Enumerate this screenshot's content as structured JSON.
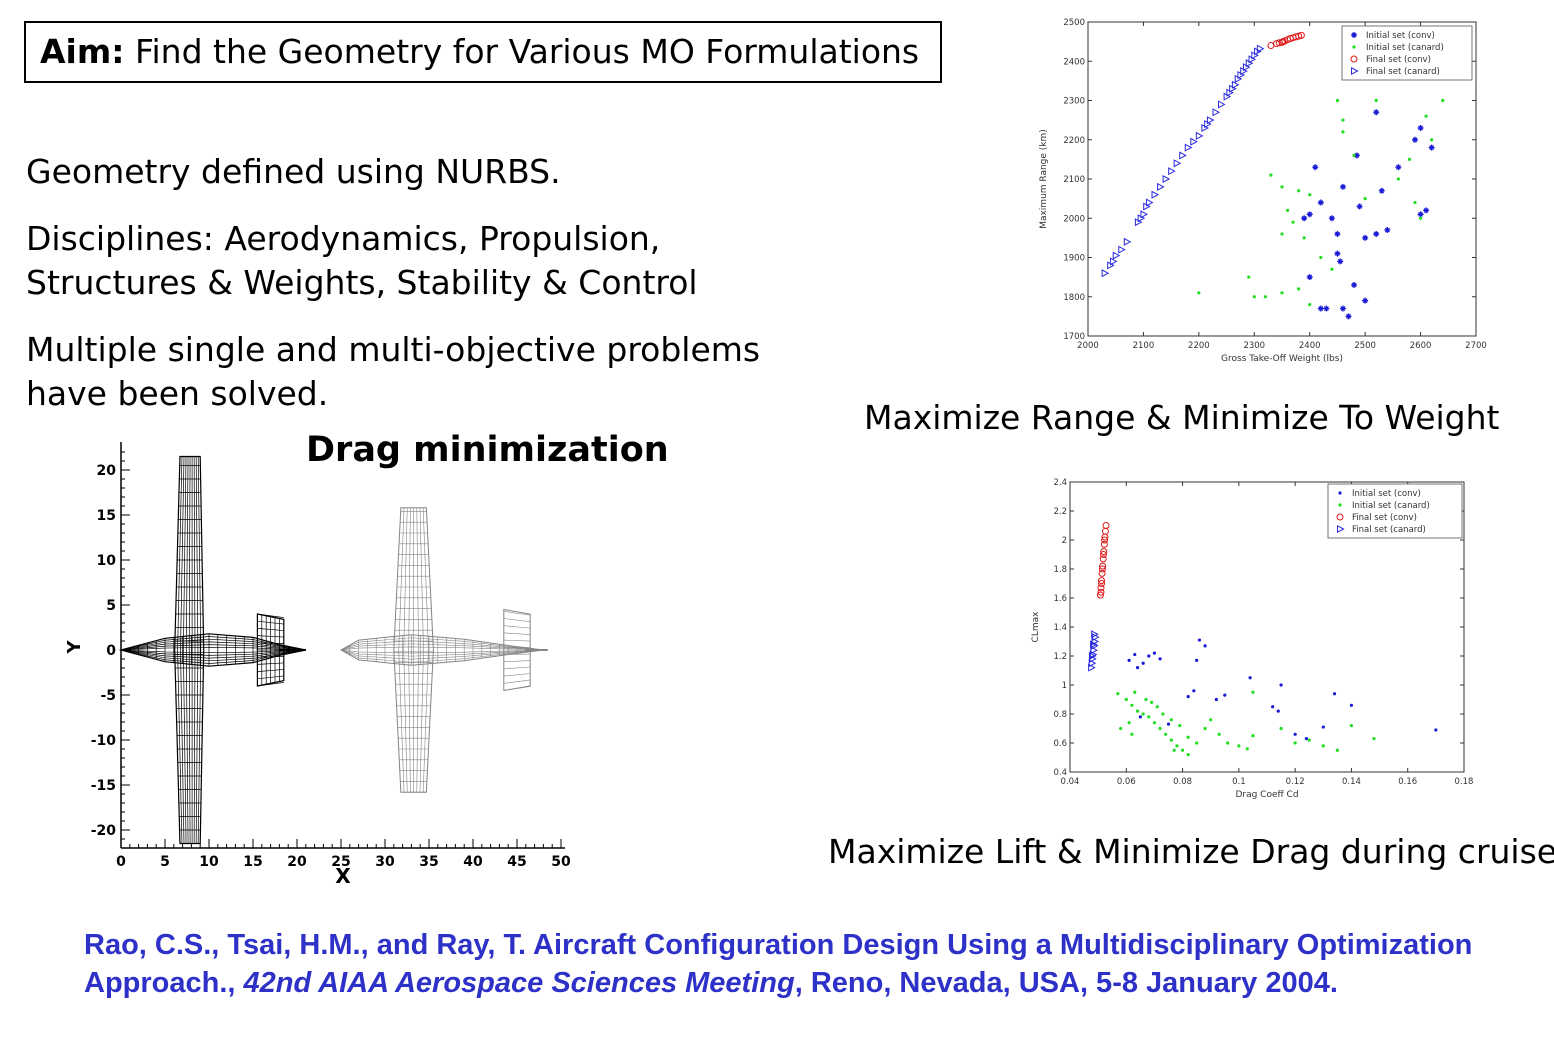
{
  "aim": {
    "label": "Aim:",
    "text": "Find the Geometry  for Various MO Formulations"
  },
  "bullets": {
    "nurbs": "Geometry defined using NURBS.",
    "disciplines_1": "Disciplines: Aerodynamics, Propulsion,",
    "disciplines_2": "Structures & Weights, Stability & Control",
    "multi_1": "Multiple single and multi-objective problems",
    "multi_2": "have been solved."
  },
  "drag_title": "Drag minimization",
  "caption_range": "Maximize Range & Minimize To Weight",
  "caption_lift": "Maximize Lift & Minimize Drag during cruise",
  "reference": {
    "part1": "Rao, C.S., Tsai, H.M., and Ray,  T. Aircraft Configuration Design Using a Multidisciplinary Optimization Approach., ",
    "journal": "42nd AIAA Aerospace Sciences Meeting",
    "part2": ", Reno, Nevada, USA, 5-8 January 2004."
  },
  "colors": {
    "conv_initial": "#1a1ad6",
    "canard_initial": "#22dd22",
    "conv_final": "#e01818",
    "canard_final": "#2a2ae0",
    "reference": "#2e31c8"
  },
  "chart_data": [
    {
      "type": "scatter",
      "xlabel": "Gross Take-Off Weight (lbs)",
      "ylabel": "Maximum Range (km)",
      "xlim": [
        2000,
        2700
      ],
      "ylim": [
        1700,
        2500
      ],
      "xticks": [
        2000,
        2100,
        2200,
        2300,
        2400,
        2500,
        2600,
        2700
      ],
      "yticks": [
        1700,
        1800,
        1900,
        2000,
        2100,
        2200,
        2300,
        2400,
        2500
      ],
      "legend": "top-right",
      "series": [
        {
          "name": "Initial set (conv)",
          "marker": "star",
          "color": "#1a1ad6",
          "points": [
            [
              2485,
              2160
            ],
            [
              2410,
              2130
            ],
            [
              2460,
              2080
            ],
            [
              2520,
              2270
            ],
            [
              2600,
              2230
            ],
            [
              2620,
              2180
            ],
            [
              2590,
              2200
            ],
            [
              2560,
              2130
            ],
            [
              2530,
              2070
            ],
            [
              2490,
              2030
            ],
            [
              2440,
              2000
            ],
            [
              2420,
              2040
            ],
            [
              2400,
              2010
            ],
            [
              2450,
              1960
            ],
            [
              2390,
              2000
            ],
            [
              2610,
              2020
            ],
            [
              2600,
              2010
            ],
            [
              2540,
              1970
            ],
            [
              2520,
              1960
            ],
            [
              2500,
              1950
            ],
            [
              2450,
              1910
            ],
            [
              2455,
              1890
            ],
            [
              2400,
              1850
            ],
            [
              2480,
              1830
            ],
            [
              2430,
              1770
            ],
            [
              2460,
              1770
            ],
            [
              2500,
              1790
            ],
            [
              2470,
              1750
            ],
            [
              2420,
              1770
            ]
          ]
        },
        {
          "name": "Initial set (canard)",
          "marker": "dot",
          "color": "#22dd22",
          "points": [
            [
              2330,
              2110
            ],
            [
              2350,
              2080
            ],
            [
              2380,
              2070
            ],
            [
              2360,
              2020
            ],
            [
              2400,
              2060
            ],
            [
              2370,
              1990
            ],
            [
              2350,
              1960
            ],
            [
              2390,
              1950
            ],
            [
              2420,
              1900
            ],
            [
              2440,
              1870
            ],
            [
              2380,
              1820
            ],
            [
              2350,
              1810
            ],
            [
              2320,
              1800
            ],
            [
              2290,
              1850
            ],
            [
              2200,
              1810
            ],
            [
              2300,
              1800
            ],
            [
              2400,
              1780
            ],
            [
              2460,
              2250
            ],
            [
              2520,
              2300
            ],
            [
              2560,
              2100
            ],
            [
              2580,
              2150
            ],
            [
              2620,
              2200
            ],
            [
              2610,
              2260
            ],
            [
              2640,
              2300
            ],
            [
              2600,
              2000
            ],
            [
              2590,
              2040
            ],
            [
              2460,
              2220
            ],
            [
              2480,
              2160
            ],
            [
              2500,
              2050
            ],
            [
              2450,
              2300
            ]
          ]
        },
        {
          "name": "Final set (conv)",
          "marker": "circle",
          "color": "#e01818",
          "points": [
            [
              2330,
              2440
            ],
            [
              2340,
              2445
            ],
            [
              2350,
              2448
            ],
            [
              2355,
              2452
            ],
            [
              2360,
              2455
            ],
            [
              2365,
              2458
            ],
            [
              2370,
              2460
            ],
            [
              2375,
              2462
            ],
            [
              2380,
              2464
            ],
            [
              2385,
              2466
            ],
            [
              2345,
              2447
            ],
            [
              2352,
              2450
            ]
          ]
        },
        {
          "name": "Final set (canard)",
          "marker": "triangle",
          "color": "#2a2ae0",
          "points": [
            [
              2030,
              1860
            ],
            [
              2040,
              1880
            ],
            [
              2045,
              1890
            ],
            [
              2050,
              1905
            ],
            [
              2060,
              1920
            ],
            [
              2070,
              1940
            ],
            [
              2090,
              1990
            ],
            [
              2095,
              2000
            ],
            [
              2100,
              2010
            ],
            [
              2105,
              2030
            ],
            [
              2110,
              2040
            ],
            [
              2120,
              2060
            ],
            [
              2130,
              2080
            ],
            [
              2140,
              2100
            ],
            [
              2150,
              2120
            ],
            [
              2160,
              2140
            ],
            [
              2170,
              2160
            ],
            [
              2180,
              2180
            ],
            [
              2190,
              2195
            ],
            [
              2200,
              2210
            ],
            [
              2210,
              2230
            ],
            [
              2215,
              2240
            ],
            [
              2220,
              2250
            ],
            [
              2230,
              2270
            ],
            [
              2240,
              2290
            ],
            [
              2250,
              2310
            ],
            [
              2255,
              2320
            ],
            [
              2260,
              2330
            ],
            [
              2265,
              2340
            ],
            [
              2270,
              2355
            ],
            [
              2275,
              2365
            ],
            [
              2280,
              2375
            ],
            [
              2285,
              2385
            ],
            [
              2290,
              2395
            ],
            [
              2295,
              2405
            ],
            [
              2300,
              2415
            ],
            [
              2305,
              2425
            ],
            [
              2310,
              2432
            ]
          ]
        }
      ]
    },
    {
      "type": "scatter",
      "xlabel": "Drag Coeff Cd",
      "ylabel": "CLmax",
      "xlim": [
        0.04,
        0.18
      ],
      "ylim": [
        0.4,
        2.4
      ],
      "xticks": [
        0.04,
        0.06,
        0.08,
        0.1,
        0.12,
        0.14,
        0.16,
        0.18
      ],
      "xticklabels": [
        "0.04",
        "0.06",
        "0.08",
        "0.1",
        "0.12",
        "0.14",
        "0.16",
        "0.18"
      ],
      "yticks": [
        0.4,
        0.6,
        0.8,
        1.0,
        1.2,
        1.4,
        1.6,
        1.8,
        2.0,
        2.2,
        2.4
      ],
      "yticklabels": [
        "0.4",
        "0.6",
        "0.8",
        "1",
        "1.2",
        "1.4",
        "1.6",
        "1.8",
        "2",
        "2.2",
        "2.4"
      ],
      "legend": "top-right",
      "series": [
        {
          "name": "Initial set (conv)",
          "marker": "dot",
          "color": "#1a1ad6",
          "points": [
            [
              0.061,
              1.17
            ],
            [
              0.063,
              1.21
            ],
            [
              0.066,
              1.15
            ],
            [
              0.068,
              1.2
            ],
            [
              0.07,
              1.22
            ],
            [
              0.072,
              1.18
            ],
            [
              0.064,
              1.12
            ],
            [
              0.086,
              1.31
            ],
            [
              0.088,
              1.27
            ],
            [
              0.085,
              1.17
            ],
            [
              0.082,
              0.92
            ],
            [
              0.084,
              0.96
            ],
            [
              0.092,
              0.9
            ],
            [
              0.095,
              0.93
            ],
            [
              0.104,
              1.05
            ],
            [
              0.112,
              0.85
            ],
            [
              0.114,
              0.82
            ],
            [
              0.115,
              1.0
            ],
            [
              0.12,
              0.66
            ],
            [
              0.124,
              0.63
            ],
            [
              0.13,
              0.71
            ],
            [
              0.134,
              0.94
            ],
            [
              0.14,
              0.86
            ],
            [
              0.17,
              0.69
            ],
            [
              0.065,
              0.78
            ],
            [
              0.075,
              0.73
            ]
          ]
        },
        {
          "name": "Initial set (canard)",
          "marker": "dot",
          "color": "#22dd22",
          "points": [
            [
              0.057,
              0.94
            ],
            [
              0.06,
              0.9
            ],
            [
              0.062,
              0.86
            ],
            [
              0.064,
              0.82
            ],
            [
              0.066,
              0.8
            ],
            [
              0.068,
              0.78
            ],
            [
              0.07,
              0.74
            ],
            [
              0.072,
              0.7
            ],
            [
              0.074,
              0.66
            ],
            [
              0.076,
              0.62
            ],
            [
              0.078,
              0.58
            ],
            [
              0.08,
              0.55
            ],
            [
              0.082,
              0.52
            ],
            [
              0.085,
              0.6
            ],
            [
              0.088,
              0.7
            ],
            [
              0.09,
              0.76
            ],
            [
              0.093,
              0.66
            ],
            [
              0.096,
              0.6
            ],
            [
              0.1,
              0.58
            ],
            [
              0.103,
              0.56
            ],
            [
              0.105,
              0.65
            ],
            [
              0.058,
              0.7
            ],
            [
              0.061,
              0.74
            ],
            [
              0.063,
              0.95
            ],
            [
              0.067,
              0.9
            ],
            [
              0.069,
              0.88
            ],
            [
              0.071,
              0.85
            ],
            [
              0.073,
              0.8
            ],
            [
              0.076,
              0.76
            ],
            [
              0.079,
              0.72
            ],
            [
              0.105,
              0.95
            ],
            [
              0.115,
              0.7
            ],
            [
              0.12,
              0.6
            ],
            [
              0.125,
              0.62
            ],
            [
              0.13,
              0.58
            ],
            [
              0.135,
              0.55
            ],
            [
              0.14,
              0.72
            ],
            [
              0.148,
              0.63
            ],
            [
              0.062,
              0.66
            ],
            [
              0.077,
              0.55
            ],
            [
              0.082,
              0.64
            ]
          ]
        },
        {
          "name": "Final set (conv)",
          "marker": "circle",
          "color": "#e01818",
          "points": [
            [
              0.0508,
              1.62
            ],
            [
              0.051,
              1.67
            ],
            [
              0.0512,
              1.72
            ],
            [
              0.0514,
              1.77
            ],
            [
              0.0516,
              1.82
            ],
            [
              0.0518,
              1.87
            ],
            [
              0.052,
              1.92
            ],
            [
              0.0522,
              1.97
            ],
            [
              0.0524,
              2.02
            ],
            [
              0.0526,
              2.06
            ],
            [
              0.0528,
              2.1
            ],
            [
              0.051,
              1.64
            ],
            [
              0.0512,
              1.7
            ],
            [
              0.0515,
              1.8
            ],
            [
              0.0519,
              1.9
            ],
            [
              0.0523,
              2.0
            ]
          ]
        },
        {
          "name": "Final set (canard)",
          "marker": "triangle",
          "color": "#2a2ae0",
          "points": [
            [
              0.0475,
              1.12
            ],
            [
              0.0477,
              1.15
            ],
            [
              0.0479,
              1.18
            ],
            [
              0.0481,
              1.21
            ],
            [
              0.0483,
              1.24
            ],
            [
              0.0485,
              1.27
            ],
            [
              0.0487,
              1.3
            ],
            [
              0.0489,
              1.33
            ],
            [
              0.0478,
              1.2
            ],
            [
              0.0482,
              1.28
            ],
            [
              0.0486,
              1.35
            ]
          ]
        }
      ]
    }
  ],
  "wing_plot": {
    "xlabel": "X",
    "ylabel": "Y",
    "xlim": [
      0,
      50
    ],
    "ylim": [
      -22,
      22
    ],
    "xticks": [
      0,
      5,
      10,
      15,
      20,
      25,
      30,
      35,
      40,
      45,
      50
    ],
    "yticks": [
      -20,
      -15,
      -10,
      -5,
      0,
      5,
      10,
      15,
      20
    ]
  }
}
